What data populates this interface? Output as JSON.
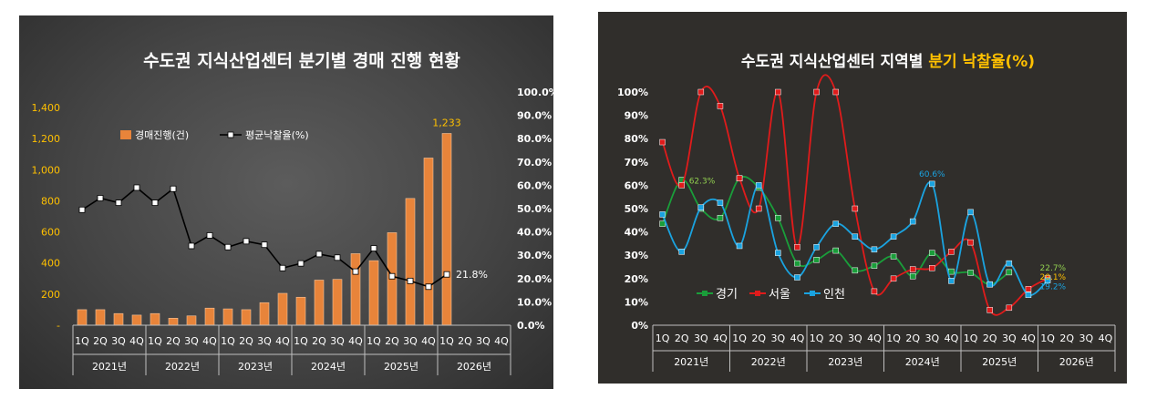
{
  "chart_data": [
    {
      "type": "bar",
      "title": "수도권 지식산업센터 분기별 경매 진행 현황",
      "categories": [
        "1Q",
        "2Q",
        "3Q",
        "4Q",
        "1Q",
        "2Q",
        "3Q",
        "4Q",
        "1Q",
        "2Q",
        "3Q",
        "4Q",
        "1Q",
        "2Q",
        "3Q",
        "4Q",
        "1Q",
        "2Q",
        "3Q",
        "4Q",
        "1Q",
        "2Q",
        "3Q",
        "4Q"
      ],
      "year_groups": [
        "2021년",
        "2022년",
        "2023년",
        "2024년",
        "2025년",
        "2026년"
      ],
      "y_ticks": [
        "-",
        "200",
        "400",
        "600",
        "800",
        "1,000",
        "1,200",
        "1,400"
      ],
      "y2_ticks": [
        "0.0%",
        "10.0%",
        "20.0%",
        "30.0%",
        "40.0%",
        "50.0%",
        "60.0%",
        "70.0%",
        "80.0%",
        "90.0%",
        "100.0%"
      ],
      "ylim": [
        0,
        1400
      ],
      "y2lim": [
        0,
        100
      ],
      "series": [
        {
          "name": "경매진행(건)",
          "kind": "bar",
          "axis": "left",
          "color": "#e8843a",
          "values": [
            100,
            100,
            75,
            65,
            75,
            45,
            60,
            110,
            105,
            100,
            145,
            205,
            180,
            290,
            295,
            460,
            415,
            595,
            815,
            1075,
            1233,
            null,
            null,
            null
          ]
        },
        {
          "name": "평균낙찰율(%)",
          "kind": "line",
          "axis": "right",
          "color": "#000000",
          "values": [
            49.5,
            54.5,
            52.5,
            59,
            52.5,
            58.5,
            34,
            38.5,
            33.5,
            36,
            34.5,
            24.5,
            26.5,
            30.5,
            29,
            23,
            33,
            21,
            19,
            16.5,
            21.8,
            null,
            null,
            null
          ]
        }
      ],
      "labels": {
        "bar_last": "1,233",
        "line_last": "21.8%"
      },
      "legend_position": "top-left"
    },
    {
      "type": "line",
      "title_main": "수도권 지식산업센터 지역별 ",
      "title_highlight": "분기 낙찰율(%)",
      "categories": [
        "1Q",
        "2Q",
        "3Q",
        "4Q",
        "1Q",
        "2Q",
        "3Q",
        "4Q",
        "1Q",
        "2Q",
        "3Q",
        "4Q",
        "1Q",
        "2Q",
        "3Q",
        "4Q",
        "1Q",
        "2Q",
        "3Q",
        "4Q",
        "1Q",
        "2Q",
        "3Q",
        "4Q"
      ],
      "year_groups": [
        "2021년",
        "2022년",
        "2023년",
        "2024년",
        "2025년",
        "2026년"
      ],
      "y_ticks": [
        "0%",
        "10%",
        "20%",
        "30%",
        "40%",
        "50%",
        "60%",
        "70%",
        "80%",
        "90%",
        "100%"
      ],
      "ylim": [
        0,
        100
      ],
      "series": [
        {
          "name": "경기",
          "color": "#1a9e3a",
          "values": [
            43.5,
            62.3,
            50,
            46,
            63,
            59,
            46,
            26.5,
            28,
            32,
            23.5,
            25.5,
            29.5,
            21,
            31,
            23,
            22.5,
            17.5,
            22.7,
            null,
            null,
            null,
            null,
            null
          ]
        },
        {
          "name": "서울",
          "color": "#e01b1b",
          "values": [
            78.5,
            60,
            100,
            94,
            63,
            50,
            100,
            33.5,
            100,
            100,
            50,
            14.5,
            20,
            24,
            24.5,
            31.5,
            35.5,
            6.5,
            7.5,
            15.5,
            20.1,
            null,
            null,
            null
          ]
        },
        {
          "name": "인천",
          "color": "#1aa3e0",
          "values": [
            47.5,
            31.5,
            50.5,
            52.5,
            34,
            60,
            31,
            20.5,
            33.5,
            43.5,
            38,
            32.5,
            38,
            44.5,
            60.6,
            19,
            48.5,
            17.5,
            26.5,
            13,
            19.2,
            null,
            null,
            null
          ]
        }
      ],
      "labels": {
        "gyeonggi_peak": "62.3%",
        "incheon_peak": "60.6%",
        "gyeonggi_last": "22.7%",
        "seoul_last": "20.1%",
        "incheon_last": "19.2%"
      },
      "legend_position": "bottom-left"
    }
  ]
}
